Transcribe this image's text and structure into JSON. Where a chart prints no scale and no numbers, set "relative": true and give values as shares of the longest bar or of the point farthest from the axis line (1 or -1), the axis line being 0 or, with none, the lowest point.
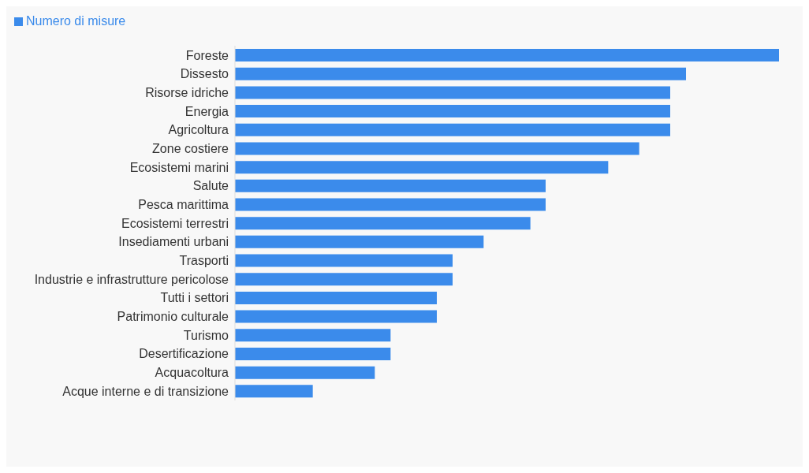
{
  "chart_data": {
    "type": "bar",
    "orientation": "horizontal",
    "relative": true,
    "legend": "top left",
    "categories": [
      "Foreste",
      "Dissesto",
      "Risorse idriche",
      "Energia",
      "Agricoltura",
      "Zone costiere",
      "Ecosistemi marini",
      "Salute",
      "Pesca marittima",
      "Ecosistemi terrestri",
      "Insediamenti urbani",
      "Trasporti",
      "Industrie e infrastrutture pericolose",
      "Tutti i settori",
      "Patrimonio culturale",
      "Turismo",
      "Desertificazione",
      "Acquacoltura",
      "Acque interne e di transizione"
    ],
    "series": [
      {
        "name": "Numero di misure",
        "color": "#3b8beb",
        "values": [
          1,
          0.829,
          0.8,
          0.8,
          0.8,
          0.743,
          0.686,
          0.571,
          0.571,
          0.543,
          0.457,
          0.4,
          0.4,
          0.371,
          0.371,
          0.286,
          0.286,
          0.257,
          0.143
        ]
      }
    ]
  }
}
